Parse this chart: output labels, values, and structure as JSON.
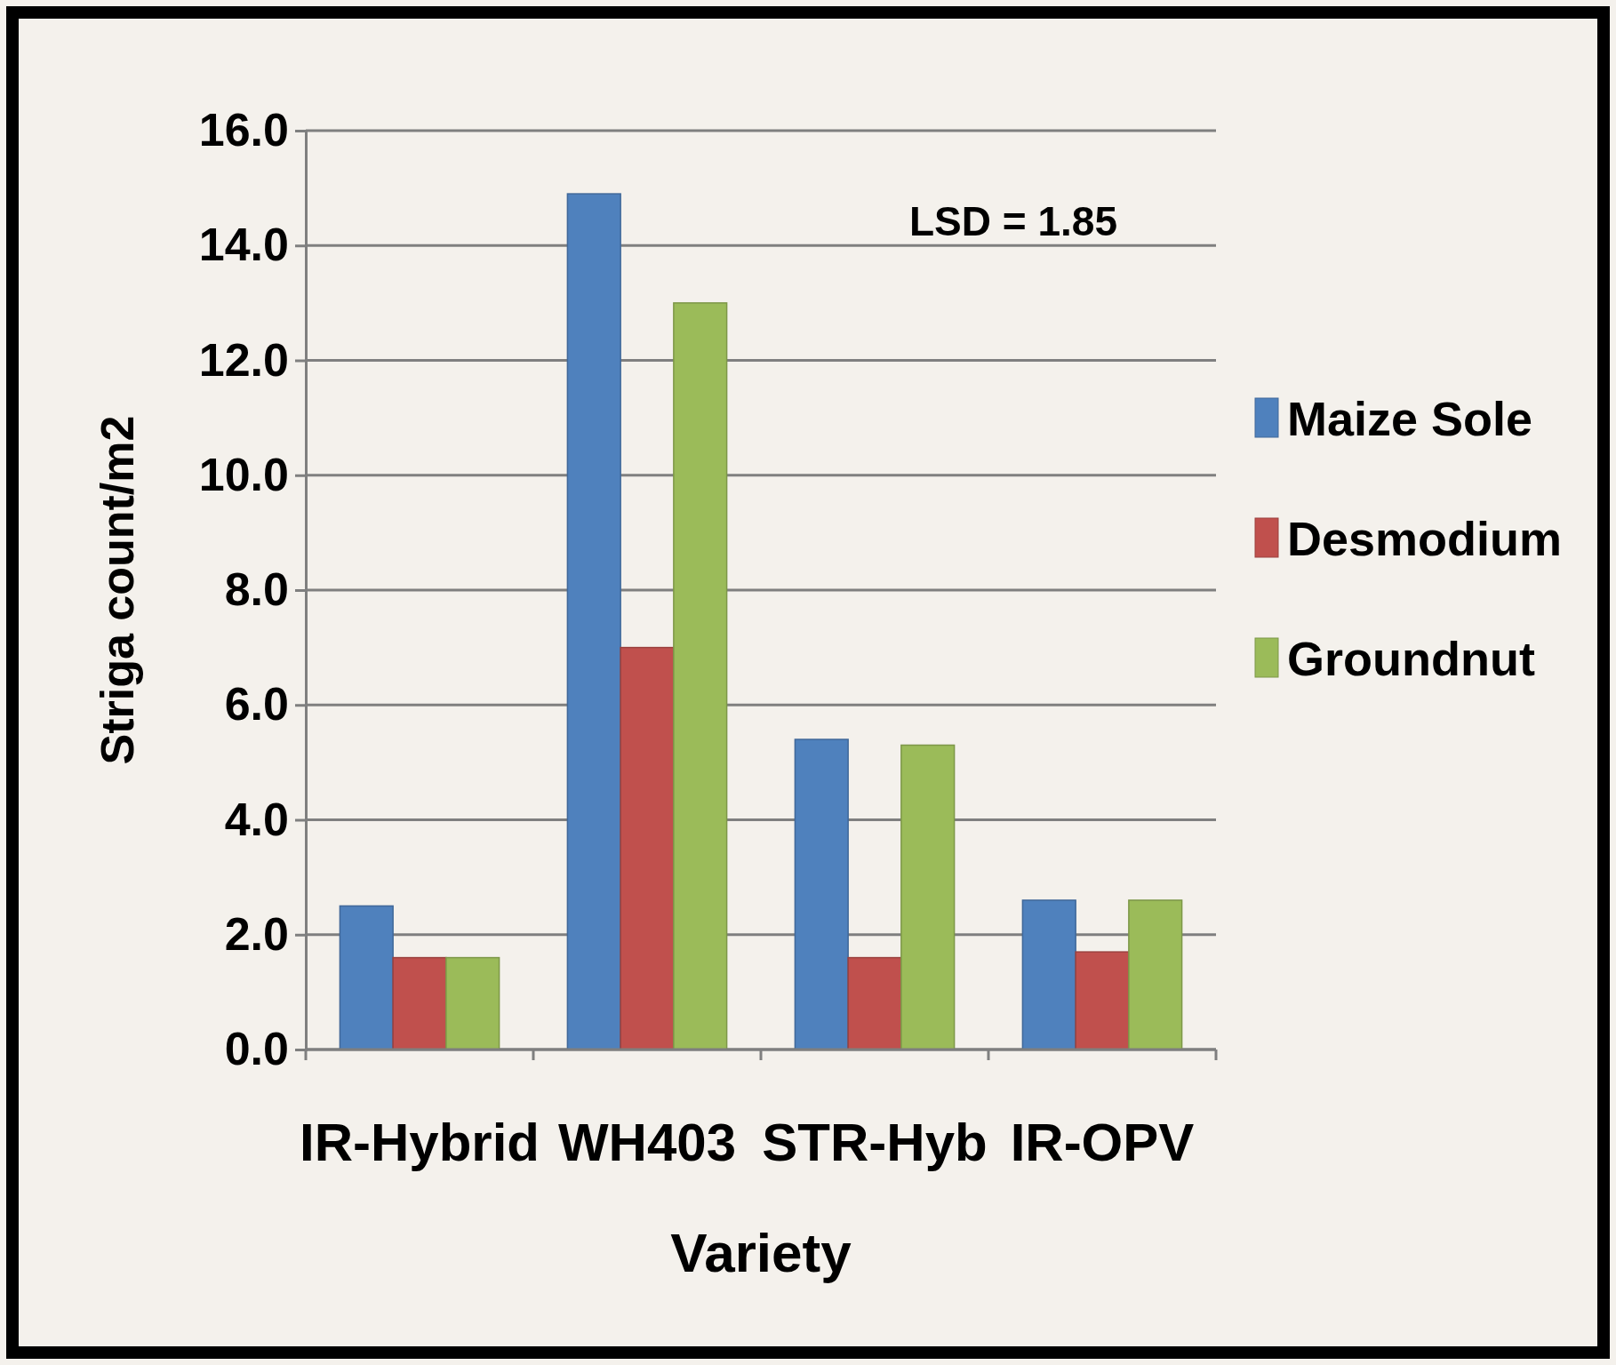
{
  "chart_data": {
    "type": "bar",
    "xlabel": "Variety",
    "ylabel": "Striga count/m2",
    "categories": [
      "IR-Hybrid",
      "WH403",
      "STR-Hyb",
      "IR-OPV"
    ],
    "series": [
      {
        "name": "Maize Sole",
        "color": "#4f81bd",
        "values": [
          2.5,
          14.9,
          5.4,
          2.6
        ]
      },
      {
        "name": "Desmodium",
        "color": "#c0504d",
        "values": [
          1.6,
          7.0,
          1.6,
          1.7
        ]
      },
      {
        "name": "Groundnut",
        "color": "#9bbb59",
        "values": [
          1.6,
          13.0,
          5.3,
          2.6
        ]
      }
    ],
    "ylim": [
      0,
      16
    ],
    "yticks": [
      {
        "value": 0,
        "label": "0.0"
      },
      {
        "value": 2,
        "label": "2.0"
      },
      {
        "value": 4,
        "label": "4.0"
      },
      {
        "value": 6,
        "label": "6.0"
      },
      {
        "value": 8,
        "label": "8.0"
      },
      {
        "value": 10,
        "label": "10.0"
      },
      {
        "value": 12,
        "label": "12.0"
      },
      {
        "value": 14,
        "label": "14.0"
      },
      {
        "value": 16,
        "label": "16.0"
      }
    ],
    "grid": "y",
    "legend": "right",
    "annotations": [
      "LSD = 1.85"
    ]
  }
}
